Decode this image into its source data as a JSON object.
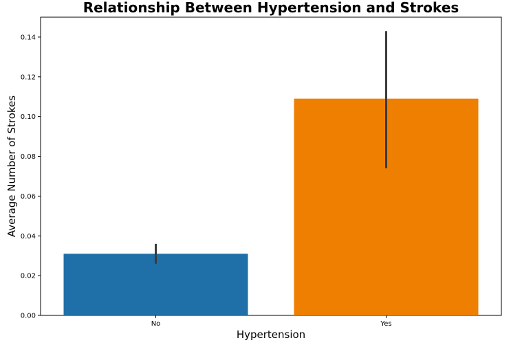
{
  "chart_data": {
    "type": "bar",
    "title": "Relationship Between Hypertension and Strokes",
    "xlabel": "Hypertension",
    "ylabel": "Average Number of Strokes",
    "categories": [
      "No",
      "Yes"
    ],
    "values": [
      0.031,
      0.109
    ],
    "error_bars": [
      {
        "low": 0.026,
        "high": 0.036
      },
      {
        "low": 0.074,
        "high": 0.143
      }
    ],
    "colors": [
      "#1f6fa8",
      "#ee7f00"
    ],
    "error_color": "#3b3b3b",
    "ylim": [
      0,
      0.15
    ],
    "yticks": [
      "0.00",
      "0.02",
      "0.04",
      "0.06",
      "0.08",
      "0.10",
      "0.12",
      "0.14"
    ],
    "ytick_values": [
      0,
      0.02,
      0.04,
      0.06,
      0.08,
      0.1,
      0.12,
      0.14
    ],
    "grid": false,
    "legend": "none"
  }
}
